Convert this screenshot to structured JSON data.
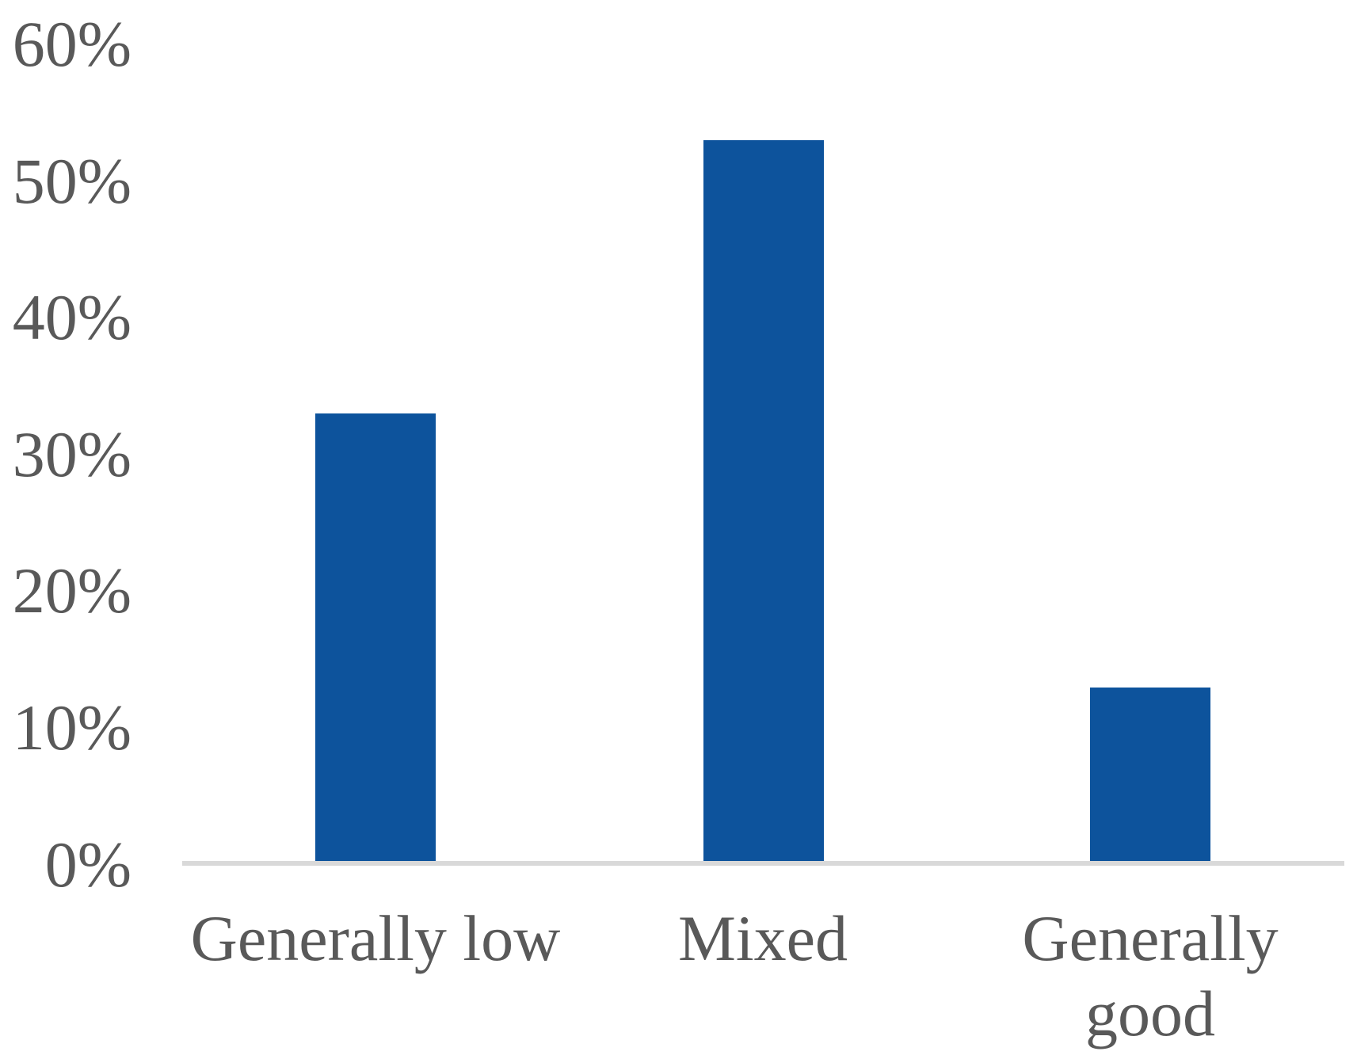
{
  "chart_data": {
    "type": "bar",
    "title": "",
    "xlabel": "",
    "ylabel": "",
    "categories": [
      "Generally low",
      "Mixed",
      "Generally good"
    ],
    "values": [
      33,
      53,
      13
    ],
    "value_unit": "%",
    "ylim": [
      0,
      60
    ],
    "ytick_step": 10,
    "ytick_labels": [
      "0%",
      "10%",
      "20%",
      "30%",
      "40%",
      "50%",
      "60%"
    ],
    "grid": false,
    "legend": false,
    "colors": {
      "bar": "#0d539c",
      "axis_line": "#d9d9d9",
      "text": "#595959"
    }
  }
}
